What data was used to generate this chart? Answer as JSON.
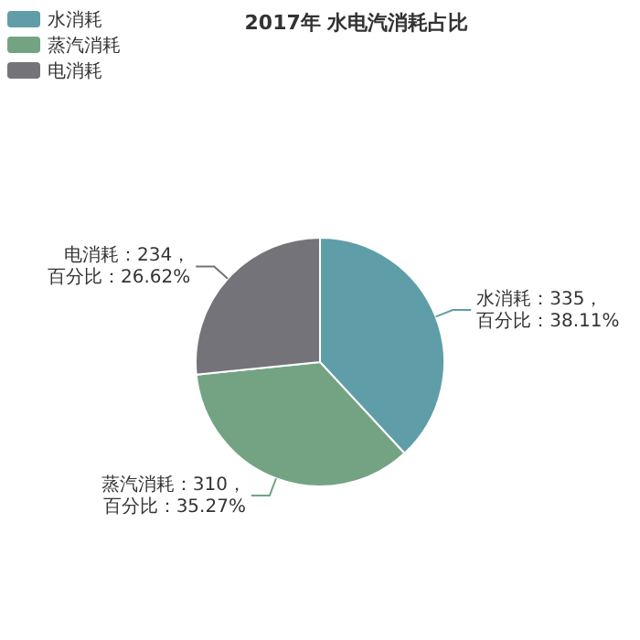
{
  "chart_data": {
    "type": "pie",
    "title": "2017年 水电汽消耗占比",
    "categories": [
      "水消耗",
      "蒸汽消耗",
      "电消耗"
    ],
    "values": [
      335,
      310,
      234
    ],
    "colors": [
      "#5f9ea8",
      "#73a383",
      "#747379"
    ],
    "value_labels": [
      "水消耗：335，百分比：38.11%",
      "蒸汽消耗：310，百分比：35.27%",
      "电消耗：234，百分比：26.62%"
    ],
    "legend": "top left"
  }
}
